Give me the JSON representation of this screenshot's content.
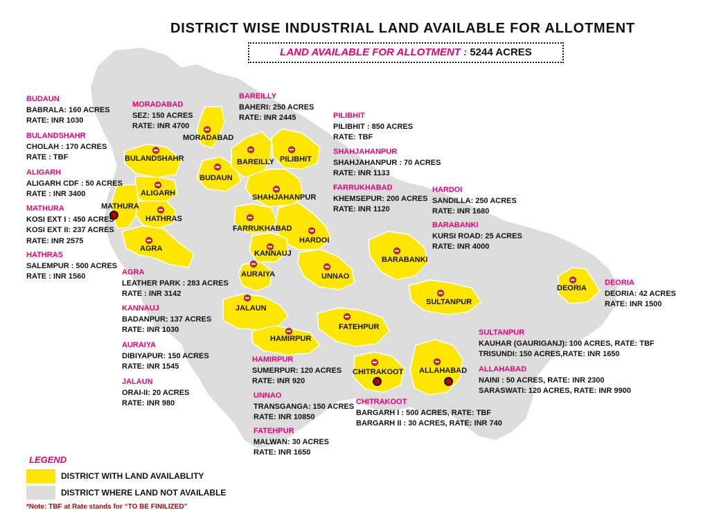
{
  "title": "DISTRICT WISE INDUSTRIAL LAND AVAILABLE FOR ALLOTMENT",
  "total": {
    "label": "LAND AVAILABLE FOR ALLOTMENT :",
    "value": "5244 ACRES"
  },
  "colors": {
    "available": "#ffe600",
    "not_available": "#dcdcdc",
    "accent": "#e6007e",
    "note": "#c00000",
    "pin": "#e8262a"
  },
  "districts": [
    {
      "key": "budaun",
      "name": "BUDAUN",
      "lines": [
        "BABRALA: 160 ACRES",
        "RATE: INR 1030"
      ]
    },
    {
      "key": "bulandshahr",
      "name": "BULANDSHAHR",
      "lines": [
        "CHOLAH : 170 ACRES",
        "RATE : TBF"
      ]
    },
    {
      "key": "aligarh",
      "name": "ALIGARH",
      "lines": [
        "ALIGARH CDF : 50 ACRES",
        "RATE : INR 3400"
      ]
    },
    {
      "key": "mathura",
      "name": "MATHURA",
      "lines": [
        "KOSI EXT I : 450 ACRES",
        "KOSI EXT II: 237 ACRES",
        "RATE: INR 2575"
      ]
    },
    {
      "key": "hathras",
      "name": "HATHRAS",
      "lines": [
        "SALEMPUR : 500 ACRES",
        "RATE : INR 1560"
      ]
    },
    {
      "key": "moradabad",
      "name": "MORADABAD",
      "lines": [
        "SEZ: 150 ACRES",
        "RATE: INR 4700"
      ]
    },
    {
      "key": "bareilly",
      "name": "BAREILLY",
      "lines": [
        "BAHERI: 250 ACRES",
        "RATE: INR 2445"
      ]
    },
    {
      "key": "pilibhit",
      "name": "PILIBHIT",
      "lines": [
        "PILIBHIT : 850 ACRES",
        "RATE: TBF"
      ]
    },
    {
      "key": "shahjahanpur",
      "name": "SHAHJAHANPUR",
      "lines": [
        "SHAHJAHANPUR : 70 ACRES",
        "RATE: INR 1133"
      ]
    },
    {
      "key": "farrukhabad",
      "name": "FARRUKHABAD",
      "lines": [
        "KHEMSEPUR: 200 ACRES",
        "RATE: INR 1120"
      ]
    },
    {
      "key": "hardoi",
      "name": "HARDOI",
      "lines": [
        "SANDILLA: 250 ACRES",
        "RATE: INR 1680"
      ]
    },
    {
      "key": "barabanki",
      "name": "BARABANKI",
      "lines": [
        "KURSI ROAD: 25 ACRES",
        "RATE: INR 4000"
      ]
    },
    {
      "key": "deoria",
      "name": "DEORIA",
      "lines": [
        "DEORIA: 42 ACRES",
        "RATE: INR 1500"
      ]
    },
    {
      "key": "agra",
      "name": "AGRA",
      "lines": [
        "LEATHER PARK : 283 ACRES",
        "RATE : INR 3142"
      ]
    },
    {
      "key": "kannauj",
      "name": "KANNAUJ",
      "lines": [
        "BADANPUR: 137 ACRES",
        "RATE: INR 1030"
      ]
    },
    {
      "key": "auraiya",
      "name": "AURAIYA",
      "lines": [
        "DIBIYAPUR: 150 ACRES",
        "RATE: INR 1545"
      ]
    },
    {
      "key": "jalaun",
      "name": "JALAUN",
      "lines": [
        "ORAI-II: 20 ACRES",
        "RATE: INR 980"
      ]
    },
    {
      "key": "hamirpur",
      "name": "HAMIRPUR",
      "lines": [
        "SUMERPUR: 120 ACRES",
        "RATE: INR 920"
      ]
    },
    {
      "key": "unnao",
      "name": "UNNAO",
      "lines": [
        "TRANSGANGA: 150 ACRES",
        "RATE: INR 10850"
      ]
    },
    {
      "key": "fatehpur",
      "name": "FATEHPUR",
      "lines": [
        "MALWAN: 30 ACRES",
        "RATE: INR 1650"
      ]
    },
    {
      "key": "chitrakoot",
      "name": "CHITRAKOOT",
      "lines": [
        "BARGARH I  : 500 ACRES, RATE: TBF",
        "BARGARH II : 30 ACRES, RATE: INR 740"
      ]
    },
    {
      "key": "sultanpur",
      "name": "SULTANPUR",
      "lines": [
        "KAUHAR (GAURIGANJ): 100 ACRES, RATE: TBF",
        "TRISUNDI: 150 ACRES,RATE: INR 1650"
      ]
    },
    {
      "key": "allahabad",
      "name": "ALLAHABAD",
      "lines": [
        "NAINI : 50 ACRES, RATE: INR 2300",
        "SARASWATI: 120 ACRES, RATE: INR 9900"
      ]
    }
  ],
  "map_labels": {
    "moradabad": "MORADABAD",
    "bulandshahr": "BULANDSHAHR",
    "bareilly": "BAREILLY",
    "pilibhit": "PILIBHIT",
    "budaun": "BUDAUN",
    "aligarh": "ALIGARH",
    "shahjahanpur": "SHAHJAHANPUR",
    "mathura": "MATHURA",
    "hathras": "HATHRAS",
    "farrukhabad": "FARRUKHABAD",
    "hardoi": "HARDOI",
    "agra": "AGRA",
    "kannauj": "KANNAUJ",
    "barabanki": "BARABANKI",
    "auraiya": "AURAIYA",
    "unnao": "UNNAO",
    "deoria": "DEORIA",
    "sultanpur": "SULTANPUR",
    "jalaun": "JALAUN",
    "fatehpur": "FATEHPUR",
    "hamirpur": "HAMIRPUR",
    "chitrakoot": "CHITRAKOOT",
    "allahabad": "ALLAHABAD"
  },
  "legend": {
    "title": "LEGEND",
    "items": [
      {
        "label": "DISTRICT WITH LAND AVAILABLITY",
        "color": "#ffe600"
      },
      {
        "label": "DISTRICT WHERE LAND NOT AVAILABLE",
        "color": "#dcdcdc"
      }
    ]
  },
  "note": "*Note: TBF at Rate stands for “TO BE FINILIZED”"
}
